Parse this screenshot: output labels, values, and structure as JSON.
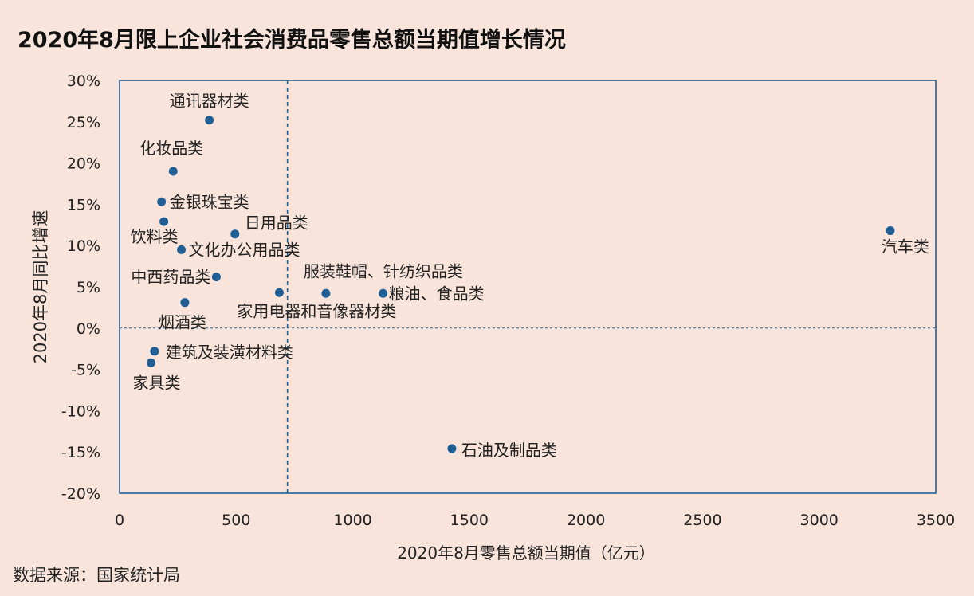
{
  "title": "2020年8月限上企业社会消费品零售总额当期值增长情况",
  "source": "数据来源：国家统计局",
  "chart_data": {
    "type": "scatter",
    "title": "2020年8月限上企业社会消费品零售总额当期值增长情况",
    "xlabel": "2020年8月零售总额当期值（亿元）",
    "ylabel": "2020年8月同比增速",
    "xlim": [
      0,
      3500
    ],
    "ylim": [
      -20,
      30
    ],
    "x_ticks": [
      0,
      500,
      1000,
      1500,
      2000,
      2500,
      3000,
      3500
    ],
    "y_ticks": [
      30,
      25,
      20,
      15,
      10,
      5,
      0,
      -5,
      -10,
      -15,
      -20
    ],
    "y_tick_format": "percent",
    "grid": false,
    "reference_lines": {
      "x": 720,
      "y": 0
    },
    "point_color": "#1f5f96",
    "points": [
      {
        "label": "通讯器材类",
        "x": 385,
        "y": 25.2
      },
      {
        "label": "化妆品类",
        "x": 230,
        "y": 19.0
      },
      {
        "label": "金银珠宝类",
        "x": 180,
        "y": 15.3
      },
      {
        "label": "饮料类",
        "x": 190,
        "y": 12.9
      },
      {
        "label": "日用品类",
        "x": 495,
        "y": 11.4
      },
      {
        "label": "文化办公用品类",
        "x": 265,
        "y": 9.5
      },
      {
        "label": "中西药品类",
        "x": 415,
        "y": 6.2
      },
      {
        "label": "家用电器和音像器材类",
        "x": 685,
        "y": 4.3
      },
      {
        "label": "服装鞋帽、针纺织品类",
        "x": 885,
        "y": 4.2
      },
      {
        "label": "粮油、食品类",
        "x": 1130,
        "y": 4.2
      },
      {
        "label": "烟酒类",
        "x": 280,
        "y": 3.1
      },
      {
        "label": "建筑及装潢材料类",
        "x": 150,
        "y": -2.8
      },
      {
        "label": "家具类",
        "x": 135,
        "y": -4.2
      },
      {
        "label": "石油及制品类",
        "x": 1425,
        "y": -14.6
      },
      {
        "label": "汽车类",
        "x": 3305,
        "y": 11.8
      }
    ]
  }
}
